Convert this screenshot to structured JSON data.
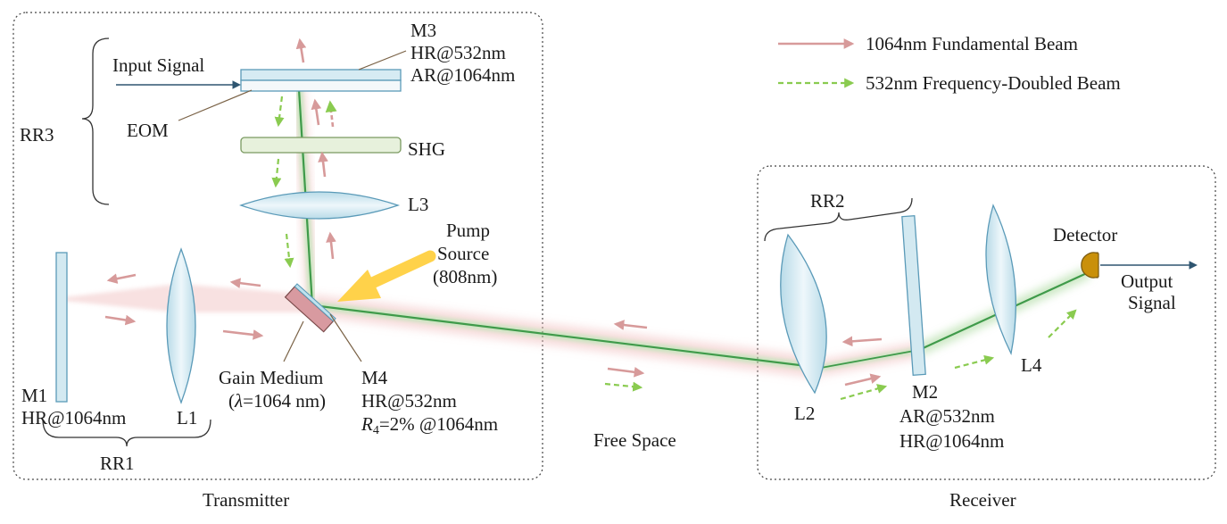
{
  "legend": {
    "fundamental": "1064nm Fundamental Beam",
    "doubled": "532nm Frequency-Doubled Beam"
  },
  "sections": {
    "transmitter": "Transmitter",
    "receiver": "Receiver",
    "free_space": "Free Space"
  },
  "groups": {
    "rr1": "RR1",
    "rr2": "RR2",
    "rr3": "RR3"
  },
  "components": {
    "m1": {
      "name": "M1",
      "spec": "HR@1064nm"
    },
    "l1": "L1",
    "l2": "L2",
    "l3": "L3",
    "l4": "L4",
    "shg": "SHG",
    "eom": "EOM",
    "input_signal": "Input Signal",
    "m3": {
      "name": "M3",
      "spec1": "HR@532nm",
      "spec2": "AR@1064nm"
    },
    "m4": {
      "name": "M4",
      "spec1": "HR@532nm",
      "spec2_var": "R",
      "spec2_sub": "4",
      "spec2_rest": "=2% @1064nm"
    },
    "gain_medium": {
      "line1": "Gain Medium",
      "line2_open": "(",
      "line2_sym": "λ",
      "line2_rest": "=1064 nm)"
    },
    "pump": {
      "line1": "Pump",
      "line2": "Source",
      "line3": "(808nm)"
    },
    "m2": {
      "name": "M2",
      "spec1": "AR@532nm",
      "spec2": "HR@1064nm"
    },
    "detector": "Detector",
    "output": {
      "line1": "Output",
      "line2": "Signal"
    }
  },
  "colors": {
    "fundamental_beam": "#d79a9a",
    "doubled_beam": "#8acb50",
    "beam_core": "#3f9a4a",
    "optic_fill": "#cfe6ef",
    "optic_stroke": "#5a9ab8",
    "pump_arrow": "#ffd24a",
    "signal_arrow": "#2e5570",
    "detector": "#c9900a"
  }
}
